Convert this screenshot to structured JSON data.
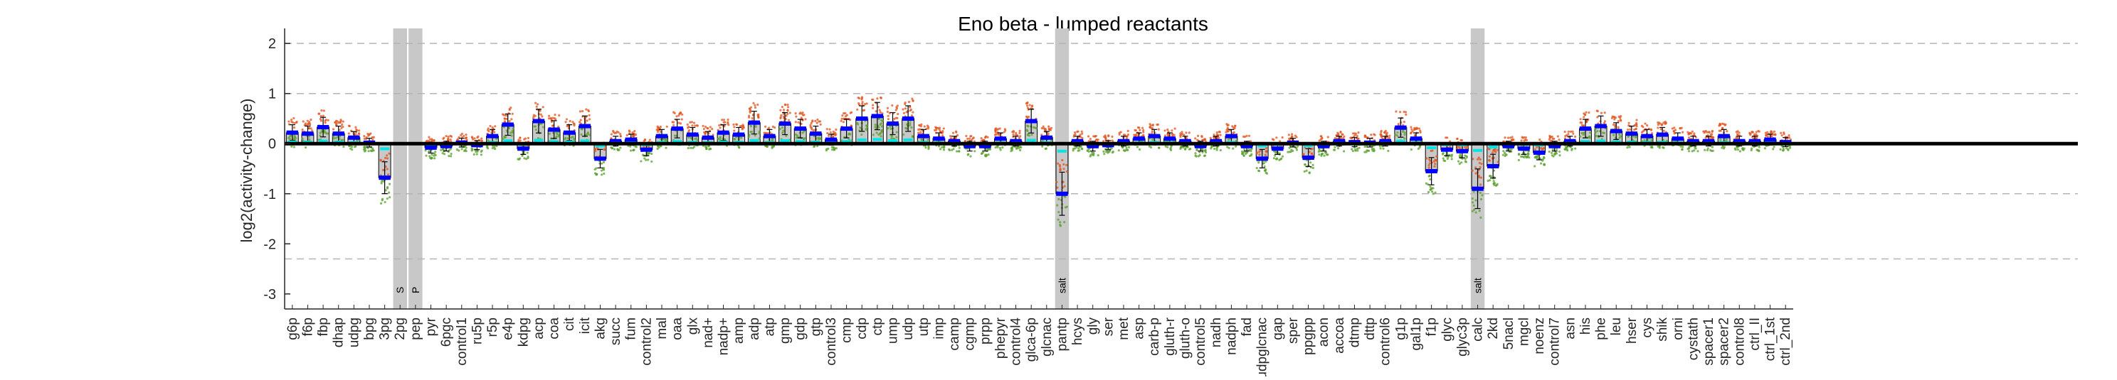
{
  "chart_data": {
    "type": "bar",
    "title": "Eno beta - lumped reactants",
    "xlabel": "",
    "ylabel": "log2(activity-change)",
    "ylim": [
      -3.3,
      2.3
    ],
    "yticks": [
      -3,
      -2,
      -1,
      0,
      1,
      2
    ],
    "dashed_lines": [
      -2.3,
      -1,
      1,
      2
    ],
    "grid": false,
    "legend": "none",
    "categories": [
      "g6p",
      "f6p",
      "fbp",
      "dhap",
      "udpg",
      "bpg",
      "3pg",
      "2pg",
      "pep",
      "pyr",
      "6pgc",
      "control1",
      "ru5p",
      "r5p",
      "e4p",
      "kdpg",
      "acp",
      "coa",
      "cit",
      "icit",
      "akg",
      "succ",
      "fum",
      "control2",
      "mal",
      "oaa",
      "glx",
      "nad+",
      "nadp+",
      "amp",
      "adp",
      "atp",
      "gmp",
      "gdp",
      "gtp",
      "control3",
      "cmp",
      "cdp",
      "ctp",
      "ump",
      "udp",
      "utp",
      "imp",
      "camp",
      "cgmp",
      "prpp",
      "phepyr",
      "control4",
      "glca-6p",
      "glcnac",
      "pantp",
      "hcys",
      "gly",
      "ser",
      "met",
      "asp",
      "carb-p",
      "gluth-r",
      "gluth-o",
      "control5",
      "nadh",
      "nadph",
      "fad",
      "udpglcnac",
      "gap",
      "sper",
      "ppgpp",
      "acon",
      "accoa",
      "dtmp",
      "dttp",
      "control6",
      "g1p",
      "gal1p",
      "f1p",
      "glyc",
      "glyc3p",
      "calc",
      "2kd",
      "5nacl",
      "mgcl",
      "noenz",
      "control7",
      "asn",
      "his",
      "phe",
      "leu",
      "hser",
      "cys",
      "shik",
      "orni",
      "cystath",
      "spacer1",
      "spacer2",
      "control8",
      "ctrl_II",
      "ctrl_1st",
      "ctrl_2nd"
    ],
    "values": [
      0.22,
      0.2,
      0.33,
      0.2,
      0.12,
      0.02,
      -0.68,
      0,
      0,
      -0.08,
      -0.05,
      0.02,
      -0.03,
      0.15,
      0.38,
      -0.1,
      0.45,
      0.28,
      0.22,
      0.35,
      -0.3,
      0.05,
      0.08,
      -0.12,
      0.15,
      0.3,
      0.18,
      0.12,
      0.22,
      0.18,
      0.42,
      0.15,
      0.4,
      0.3,
      0.2,
      0.08,
      0.3,
      0.5,
      0.55,
      0.4,
      0.5,
      0.15,
      0.1,
      0.05,
      -0.05,
      -0.05,
      0.1,
      0.05,
      0.45,
      0.12,
      -1.0,
      0.05,
      -0.05,
      -0.03,
      0.05,
      0.1,
      0.15,
      0.1,
      0.05,
      -0.05,
      0.05,
      0.15,
      -0.05,
      -0.3,
      -0.1,
      0.02,
      -0.28,
      -0.05,
      0.05,
      0.03,
      0.02,
      0.05,
      0.32,
      0.1,
      -0.55,
      -0.12,
      -0.15,
      -0.9,
      -0.45,
      -0.05,
      -0.1,
      -0.18,
      -0.05,
      0.05,
      0.3,
      0.35,
      0.25,
      0.2,
      0.15,
      0.18,
      0.1,
      0.05,
      0.05,
      0.15,
      0.05,
      0.05,
      0.08,
      0.03
    ],
    "shaded_categories": [
      "2pg",
      "pep",
      "pantp",
      "calc"
    ],
    "band_labels": [
      "S",
      "P",
      "salt",
      "salt"
    ],
    "colors": {
      "bar_fill": "#c8c8c8",
      "mean_marker": "#0000ff",
      "median_marker": "#00e5e5",
      "scatter_low": "#5aa02c",
      "scatter_high": "#e2531d",
      "shade": "#c8c8c8",
      "zero_line": "#000000"
    }
  }
}
